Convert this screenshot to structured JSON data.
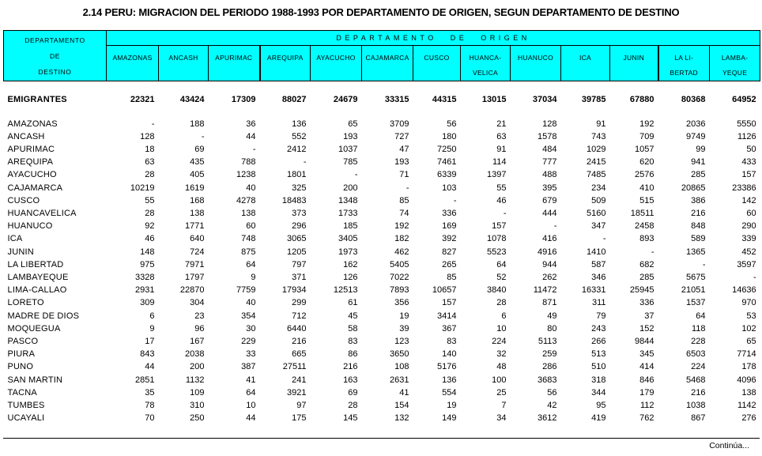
{
  "title": "2.14  PERU: MIGRACION DEL PERIODO 1988-1993 POR DEPARTAMENTO DE ORIGEN, SEGUN DEPARTAMENTO DE DESTINO",
  "colors": {
    "header_bg": "#00FFFF",
    "border": "#000000",
    "text": "#000000"
  },
  "header": {
    "corner_lines": [
      "DEPARTAMENTO",
      "DE",
      "DESTINO"
    ],
    "origin_title": "DEPARTAMENTO DE ORIGEN",
    "columns": [
      {
        "lines": [
          "AMAZONAS"
        ]
      },
      {
        "lines": [
          "ANCASH"
        ]
      },
      {
        "lines": [
          "APURIMAC"
        ]
      },
      {
        "lines": [
          "AREQUIPA"
        ]
      },
      {
        "lines": [
          "AYACUCHO"
        ]
      },
      {
        "lines": [
          "CAJAMARCA"
        ]
      },
      {
        "lines": [
          "CUSCO"
        ]
      },
      {
        "lines": [
          "HUANCA-",
          "VELICA"
        ]
      },
      {
        "lines": [
          "HUANUCO"
        ]
      },
      {
        "lines": [
          "ICA"
        ]
      },
      {
        "lines": [
          "JUNIN"
        ]
      },
      {
        "lines": [
          "LA LI-",
          "BERTAD"
        ]
      },
      {
        "lines": [
          "LAMBA-",
          "YEQUE"
        ]
      }
    ]
  },
  "emigrantes": {
    "label": "EMIGRANTES",
    "values": [
      "22321",
      "43424",
      "17309",
      "88027",
      "24679",
      "33315",
      "44315",
      "13015",
      "37034",
      "39785",
      "67880",
      "80368",
      "64952"
    ]
  },
  "rows": [
    {
      "label": "AMAZONAS",
      "values": [
        "-",
        "188",
        "36",
        "136",
        "65",
        "3709",
        "56",
        "21",
        "128",
        "91",
        "192",
        "2036",
        "5550"
      ]
    },
    {
      "label": "ANCASH",
      "values": [
        "128",
        "-",
        "44",
        "552",
        "193",
        "727",
        "180",
        "63",
        "1578",
        "743",
        "709",
        "9749",
        "1126"
      ]
    },
    {
      "label": "APURIMAC",
      "values": [
        "18",
        "69",
        "-",
        "2412",
        "1037",
        "47",
        "7250",
        "91",
        "484",
        "1029",
        "1057",
        "99",
        "50"
      ]
    },
    {
      "label": "AREQUIPA",
      "values": [
        "63",
        "435",
        "788",
        "-",
        "785",
        "193",
        "7461",
        "114",
        "777",
        "2415",
        "620",
        "941",
        "433"
      ]
    },
    {
      "label": "AYACUCHO",
      "values": [
        "28",
        "405",
        "1238",
        "1801",
        "-",
        "71",
        "6339",
        "1397",
        "488",
        "7485",
        "2576",
        "285",
        "157"
      ]
    },
    {
      "label": "CAJAMARCA",
      "values": [
        "10219",
        "1619",
        "40",
        "325",
        "200",
        "-",
        "103",
        "55",
        "395",
        "234",
        "410",
        "20865",
        "23386"
      ]
    },
    {
      "label": "CUSCO",
      "values": [
        "55",
        "168",
        "4278",
        "18483",
        "1348",
        "85",
        "-",
        "46",
        "679",
        "509",
        "515",
        "386",
        "142"
      ]
    },
    {
      "label": "HUANCAVELICA",
      "values": [
        "28",
        "138",
        "138",
        "373",
        "1733",
        "74",
        "336",
        "-",
        "444",
        "5160",
        "18511",
        "216",
        "60"
      ]
    },
    {
      "label": "HUANUCO",
      "values": [
        "92",
        "1771",
        "60",
        "296",
        "185",
        "192",
        "169",
        "157",
        "-",
        "347",
        "2458",
        "848",
        "290"
      ]
    },
    {
      "label": "ICA",
      "values": [
        "46",
        "640",
        "748",
        "3065",
        "3405",
        "182",
        "392",
        "1078",
        "416",
        "-",
        "893",
        "589",
        "339"
      ]
    },
    {
      "label": "JUNIN",
      "values": [
        "148",
        "724",
        "875",
        "1205",
        "1973",
        "462",
        "827",
        "5523",
        "4916",
        "1410",
        "-",
        "1365",
        "452"
      ]
    },
    {
      "label": "LA LIBERTAD",
      "values": [
        "975",
        "7971",
        "64",
        "797",
        "162",
        "5405",
        "265",
        "64",
        "944",
        "587",
        "682",
        "-",
        "3597"
      ]
    },
    {
      "label": "LAMBAYEQUE",
      "values": [
        "3328",
        "1797",
        "9",
        "371",
        "126",
        "7022",
        "85",
        "52",
        "262",
        "346",
        "285",
        "5675",
        "-"
      ]
    },
    {
      "label": "LIMA-CALLAO",
      "values": [
        "2931",
        "22870",
        "7759",
        "17934",
        "12513",
        "7893",
        "10657",
        "3840",
        "11472",
        "16331",
        "25945",
        "21051",
        "14636"
      ]
    },
    {
      "label": "LORETO",
      "values": [
        "309",
        "304",
        "40",
        "299",
        "61",
        "356",
        "157",
        "28",
        "871",
        "311",
        "336",
        "1537",
        "970"
      ]
    },
    {
      "label": "MADRE DE DIOS",
      "values": [
        "6",
        "23",
        "354",
        "712",
        "45",
        "19",
        "3414",
        "6",
        "49",
        "79",
        "37",
        "64",
        "53"
      ]
    },
    {
      "label": "MOQUEGUA",
      "values": [
        "9",
        "96",
        "30",
        "6440",
        "58",
        "39",
        "367",
        "10",
        "80",
        "243",
        "152",
        "118",
        "102"
      ]
    },
    {
      "label": "PASCO",
      "values": [
        "17",
        "167",
        "229",
        "216",
        "83",
        "123",
        "83",
        "224",
        "5113",
        "266",
        "9844",
        "228",
        "65"
      ]
    },
    {
      "label": "PIURA",
      "values": [
        "843",
        "2038",
        "33",
        "665",
        "86",
        "3650",
        "140",
        "32",
        "259",
        "513",
        "345",
        "6503",
        "7714"
      ]
    },
    {
      "label": "PUNO",
      "values": [
        "44",
        "200",
        "387",
        "27511",
        "216",
        "108",
        "5176",
        "48",
        "286",
        "510",
        "414",
        "224",
        "178"
      ]
    },
    {
      "label": "SAN MARTIN",
      "values": [
        "2851",
        "1132",
        "41",
        "241",
        "163",
        "2631",
        "136",
        "100",
        "3683",
        "318",
        "846",
        "5468",
        "4096"
      ]
    },
    {
      "label": "TACNA",
      "values": [
        "35",
        "109",
        "64",
        "3921",
        "69",
        "41",
        "554",
        "25",
        "56",
        "344",
        "179",
        "216",
        "138"
      ]
    },
    {
      "label": "TUMBES",
      "values": [
        "78",
        "310",
        "10",
        "97",
        "28",
        "154",
        "19",
        "7",
        "42",
        "95",
        "112",
        "1038",
        "1142"
      ]
    },
    {
      "label": "UCAYALI",
      "values": [
        "70",
        "250",
        "44",
        "175",
        "145",
        "132",
        "149",
        "34",
        "3612",
        "419",
        "762",
        "867",
        "276"
      ]
    }
  ],
  "footer": {
    "note": "Continúa..."
  }
}
